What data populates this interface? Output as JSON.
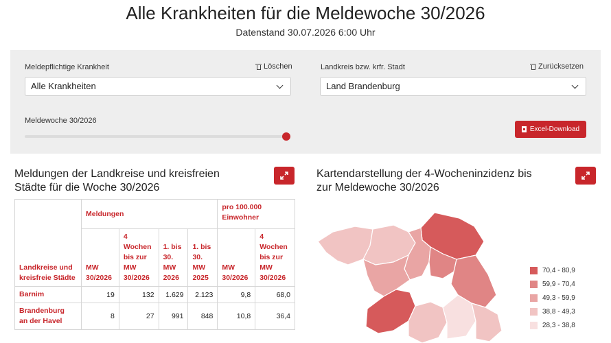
{
  "header": {
    "title": "Alle Krankheiten für die Meldewoche 30/2026",
    "subtitle": "Datenstand 30.07.2026 6:00 Uhr"
  },
  "filters": {
    "disease": {
      "label": "Meldepflichtige Krankheit",
      "clear_label": "Löschen",
      "value": "Alle Krankheiten",
      "clear_icon": "trash-icon"
    },
    "district": {
      "label": "Landkreis bzw. krfr. Stadt",
      "clear_label": "Zurücksetzen",
      "value": "Land Brandenburg",
      "clear_icon": "trash-icon"
    },
    "week": {
      "label": "Meldewoche 30/2026",
      "value_fraction": 1.0
    },
    "excel_label": "Excel-Download",
    "excel_icon": "file-excel-icon"
  },
  "table_section": {
    "title_line1": "Meldungen der Landkreise und kreisfreien",
    "title_line2": "Städte für die Woche 30/2026",
    "expand_icon": "expand-icon",
    "headers": {
      "district": [
        "Landkreise und",
        "kreisfreie Städte"
      ],
      "group_reports": "Meldungen",
      "group_per100k": [
        "pro 100.000",
        "Einwohner"
      ],
      "cols": [
        [
          "MW",
          "30/2026"
        ],
        [
          "4",
          "Wochen",
          "bis zur",
          "MW",
          "30/2026"
        ],
        [
          "1. bis",
          "30.",
          "MW",
          "2026"
        ],
        [
          "1. bis",
          "30.",
          "MW",
          "2025"
        ],
        [
          "MW",
          "30/2026"
        ],
        [
          "4",
          "Wochen",
          "bis zur",
          "MW",
          "30/2026"
        ]
      ]
    },
    "rows": [
      {
        "name": [
          "Barnim"
        ],
        "values": [
          "19",
          "132",
          "1.629",
          "2.123",
          "9,8",
          "68,0"
        ]
      },
      {
        "name": [
          "Brandenburg",
          "an der Havel"
        ],
        "values": [
          "8",
          "27",
          "991",
          "848",
          "10,8",
          "36,4"
        ]
      }
    ]
  },
  "map_section": {
    "title_line1": "Kartendarstellung der 4-Wocheninzidenz bis",
    "title_line2": "zur Meldewoche 30/2026",
    "expand_icon": "expand-icon",
    "legend": [
      {
        "label": "70,4 - 80,9",
        "color": "#d65a5b"
      },
      {
        "label": "59,9 - 70,4",
        "color": "#e08585"
      },
      {
        "label": "49,3 - 59,9",
        "color": "#e9a5a4"
      },
      {
        "label": "38,8 - 49,3",
        "color": "#f1c4c3"
      },
      {
        "label": "28,3 - 38,8",
        "color": "#f8e0e0"
      }
    ]
  },
  "colors": {
    "accent": "#c8262b",
    "panel": "#eeeeee"
  }
}
